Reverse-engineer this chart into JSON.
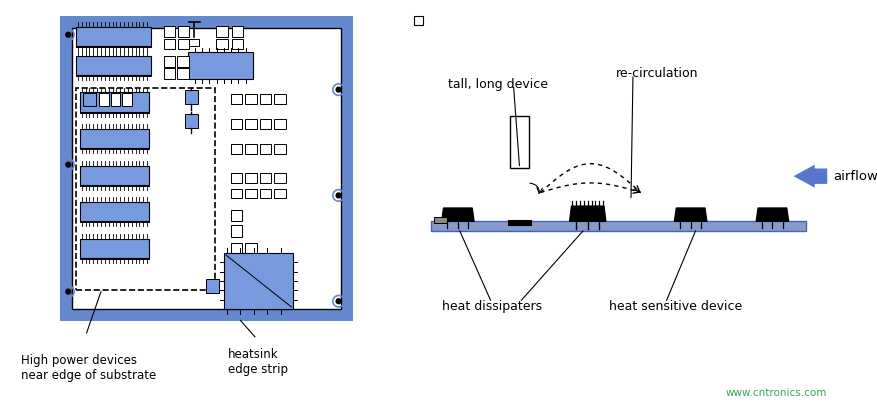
{
  "bg_color": "#ffffff",
  "blue_frame": "#6688cc",
  "blue_pcb": "#7799dd",
  "blue_component": "#6688bb",
  "blue_arrow": "#5577cc",
  "black": "#000000",
  "white": "#ffffff",
  "gray_light": "#cccccc",
  "text_color": "#000000",
  "green_text": "#33aa55",
  "fig_width": 8.78,
  "fig_height": 4.12,
  "dpi": 100,
  "labels": {
    "high_power": "High power devices\nnear edge of substrate",
    "heatsink": "heatsink\nedge strip",
    "tall_device": "tall, long device",
    "re_circulation": "re-circulation",
    "airflow": "airflow",
    "heat_dissipaters": "heat dissipaters",
    "heat_sensitive": "heat sensitive device",
    "watermark": "www.cntronics.com"
  }
}
